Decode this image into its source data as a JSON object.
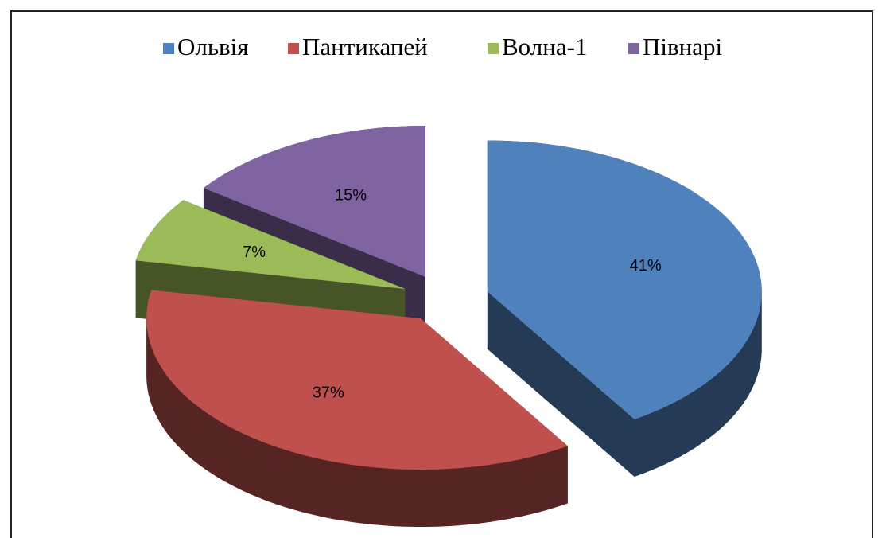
{
  "chart_data": {
    "type": "pie3d",
    "categories": [
      "Ольвія",
      "Пантикапей",
      "Волна-1",
      "Півнарі"
    ],
    "values": [
      41,
      37,
      7,
      15
    ],
    "value_labels": [
      "41%",
      "37%",
      "7%",
      "15%"
    ],
    "colors": [
      "#4f81bd",
      "#c0504d",
      "#9bbb59",
      "#8064a2"
    ],
    "legend": "top"
  }
}
